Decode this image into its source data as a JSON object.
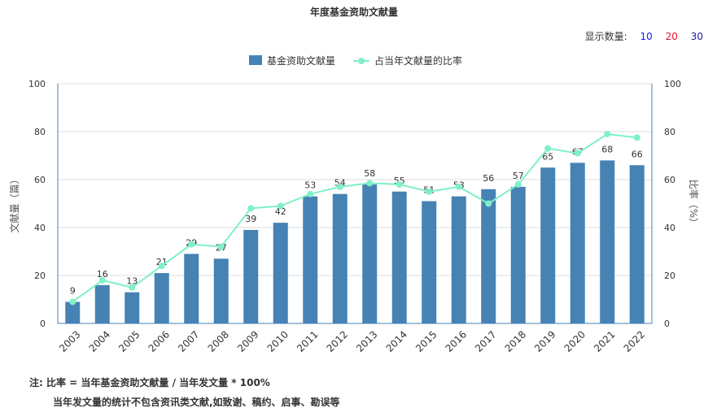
{
  "chart_data": {
    "type": "bar",
    "title": "年度基金资助文献量",
    "categories": [
      "2003",
      "2004",
      "2005",
      "2006",
      "2007",
      "2008",
      "2009",
      "2010",
      "2011",
      "2012",
      "2013",
      "2014",
      "2015",
      "2016",
      "2017",
      "2018",
      "2019",
      "2020",
      "2021",
      "2022"
    ],
    "series": [
      {
        "name": "基金资助文献量",
        "type": "bar",
        "axis": "left",
        "color": "#4682b4",
        "values": [
          9,
          16,
          13,
          21,
          29,
          27,
          39,
          42,
          53,
          54,
          58,
          55,
          51,
          53,
          56,
          57,
          65,
          67,
          68,
          66
        ]
      },
      {
        "name": "占当年文献量的比率",
        "type": "line",
        "axis": "right",
        "color": "#7ff0c8",
        "values": [
          9,
          18,
          15,
          24,
          33,
          32,
          48,
          49,
          54,
          57,
          58.5,
          58,
          55,
          57,
          50,
          58,
          73,
          71,
          79,
          77.5
        ]
      }
    ],
    "ylabel_left": "文献量（篇）",
    "ylabel_right": "比率（%）",
    "ylim_left": [
      0,
      100
    ],
    "ylim_right": [
      0,
      100
    ],
    "yticks": [
      0,
      20,
      40,
      60,
      80,
      100
    ],
    "grid": true,
    "legend_position": "top-center"
  },
  "display_count": {
    "label": "显示数量:",
    "options": [
      "10",
      "20",
      "30"
    ]
  },
  "note": {
    "line1": "注:  比率 = 当年基金资助文献量 / 当年发文量 * 100%",
    "line2": "当年发文量的统计不包含资讯类文献,如致谢、稿约、启事、勘误等"
  }
}
